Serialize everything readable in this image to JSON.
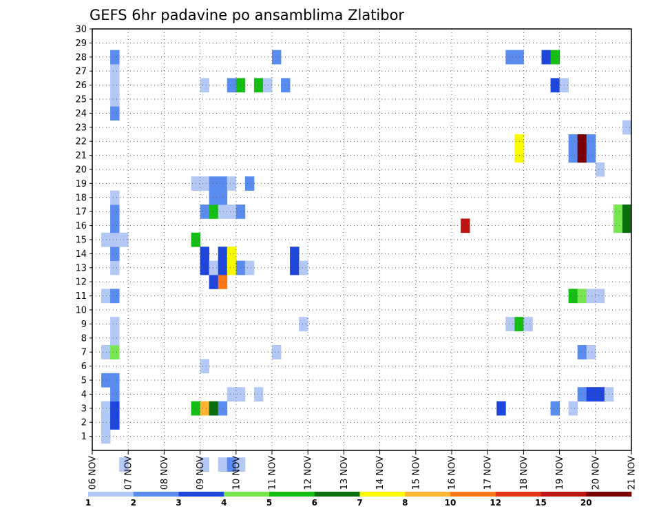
{
  "chart_data": {
    "type": "heatmap",
    "title": "GEFS 6hr padavine po ansamblima Zlatibor",
    "xlabel": "",
    "ylabel": "",
    "x_tick_labels": [
      "06 NOV",
      "07 NOV",
      "08 NOV",
      "09 NOV",
      "10 NOV",
      "11 NOV",
      "12 NOV",
      "13 NOV",
      "14 NOV",
      "15 NOV",
      "16 NOV",
      "17 NOV",
      "18 NOV",
      "19 NOV",
      "20 NOV",
      "21 NOV"
    ],
    "y_tick_labels": [
      "1",
      "2",
      "3",
      "4",
      "5",
      "6",
      "7",
      "8",
      "9",
      "10",
      "11",
      "12",
      "13",
      "14",
      "15",
      "16",
      "17",
      "18",
      "19",
      "20",
      "21",
      "22",
      "23",
      "24",
      "25",
      "26",
      "27",
      "28",
      "29",
      "30"
    ],
    "x_range": [
      0,
      60
    ],
    "y_range": [
      0,
      30
    ],
    "time_step_hours": 6,
    "grid": true,
    "legend_placement": "bottom",
    "legend_thresholds": [
      "1",
      "2",
      "3",
      "4",
      "5",
      "6",
      "7",
      "8",
      "10",
      "12",
      "15",
      "20"
    ],
    "legend_colors": [
      "#b4c8f5",
      "#5a8cf0",
      "#1e46dc",
      "#78e650",
      "#14be14",
      "#0a6e0a",
      "#fafa00",
      "#ffb432",
      "#ff7814",
      "#e63214",
      "#be1414",
      "#780000"
    ],
    "cells": [
      [
        1,
        1,
        0
      ],
      [
        1,
        2,
        0
      ],
      [
        1,
        3,
        0
      ],
      [
        1,
        5,
        1
      ],
      [
        1,
        7,
        0
      ],
      [
        1,
        11,
        0
      ],
      [
        1,
        15,
        0
      ],
      [
        2,
        2,
        2
      ],
      [
        2,
        3,
        2
      ],
      [
        2,
        4,
        1
      ],
      [
        2,
        5,
        1
      ],
      [
        2,
        7,
        3
      ],
      [
        2,
        8,
        0
      ],
      [
        2,
        9,
        0
      ],
      [
        2,
        11,
        1
      ],
      [
        2,
        13,
        0
      ],
      [
        2,
        14,
        1
      ],
      [
        2,
        15,
        0
      ],
      [
        2,
        16,
        1
      ],
      [
        2,
        17,
        1
      ],
      [
        2,
        18,
        0
      ],
      [
        2,
        24,
        1
      ],
      [
        2,
        25,
        0
      ],
      [
        2,
        26,
        0
      ],
      [
        2,
        27,
        0
      ],
      [
        2,
        28,
        1
      ],
      [
        3,
        15,
        0
      ],
      [
        3,
        -1,
        0
      ],
      [
        11,
        19,
        0
      ],
      [
        12,
        19,
        0
      ],
      [
        11,
        3,
        4
      ],
      [
        11,
        15,
        4
      ],
      [
        12,
        3,
        7
      ],
      [
        12,
        6,
        0
      ],
      [
        12,
        13,
        2
      ],
      [
        12,
        14,
        2
      ],
      [
        12,
        17,
        1
      ],
      [
        12,
        26,
        0
      ],
      [
        12,
        -1,
        0
      ],
      [
        13,
        3,
        5
      ],
      [
        13,
        12,
        2
      ],
      [
        13,
        13,
        0
      ],
      [
        13,
        17,
        4
      ],
      [
        13,
        18,
        1
      ],
      [
        13,
        19,
        1
      ],
      [
        14,
        3,
        1
      ],
      [
        14,
        12,
        8
      ],
      [
        14,
        13,
        2
      ],
      [
        14,
        14,
        2
      ],
      [
        14,
        17,
        0
      ],
      [
        14,
        18,
        1
      ],
      [
        14,
        19,
        1
      ],
      [
        14,
        -1,
        0
      ],
      [
        15,
        4,
        0
      ],
      [
        15,
        13,
        6
      ],
      [
        15,
        14,
        6
      ],
      [
        15,
        17,
        0
      ],
      [
        15,
        19,
        0
      ],
      [
        15,
        26,
        1
      ],
      [
        15,
        -1,
        1
      ],
      [
        16,
        4,
        0
      ],
      [
        16,
        13,
        1
      ],
      [
        16,
        17,
        1
      ],
      [
        16,
        26,
        4
      ],
      [
        16,
        -1,
        0
      ],
      [
        17,
        13,
        0
      ],
      [
        17,
        19,
        1
      ],
      [
        18,
        4,
        0
      ],
      [
        18,
        26,
        4
      ],
      [
        19,
        26,
        0
      ],
      [
        20,
        7,
        0
      ],
      [
        20,
        28,
        1
      ],
      [
        21,
        26,
        1
      ],
      [
        22,
        13,
        2
      ],
      [
        22,
        14,
        2
      ],
      [
        23,
        9,
        0
      ],
      [
        23,
        13,
        0
      ],
      [
        41,
        16,
        10
      ],
      [
        45,
        3,
        2
      ],
      [
        46,
        9,
        0
      ],
      [
        46,
        28,
        1
      ],
      [
        47,
        9,
        4
      ],
      [
        47,
        21,
        6
      ],
      [
        47,
        22,
        6
      ],
      [
        47,
        28,
        1
      ],
      [
        48,
        9,
        0
      ],
      [
        50,
        28,
        2
      ],
      [
        51,
        3,
        1
      ],
      [
        51,
        26,
        2
      ],
      [
        51,
        28,
        4
      ],
      [
        52,
        26,
        0
      ],
      [
        53,
        3,
        0
      ],
      [
        53,
        11,
        4
      ],
      [
        53,
        21,
        1
      ],
      [
        53,
        22,
        1
      ],
      [
        54,
        4,
        1
      ],
      [
        54,
        7,
        1
      ],
      [
        54,
        11,
        3
      ],
      [
        54,
        21,
        11
      ],
      [
        54,
        22,
        11
      ],
      [
        55,
        4,
        2
      ],
      [
        55,
        7,
        0
      ],
      [
        55,
        11,
        0
      ],
      [
        55,
        21,
        1
      ],
      [
        55,
        22,
        1
      ],
      [
        56,
        4,
        2
      ],
      [
        56,
        11,
        0
      ],
      [
        56,
        20,
        0
      ],
      [
        57,
        4,
        0
      ],
      [
        58,
        16,
        3
      ],
      [
        58,
        17,
        3
      ],
      [
        59,
        16,
        5
      ],
      [
        59,
        17,
        5
      ],
      [
        59,
        23,
        0
      ]
    ]
  }
}
